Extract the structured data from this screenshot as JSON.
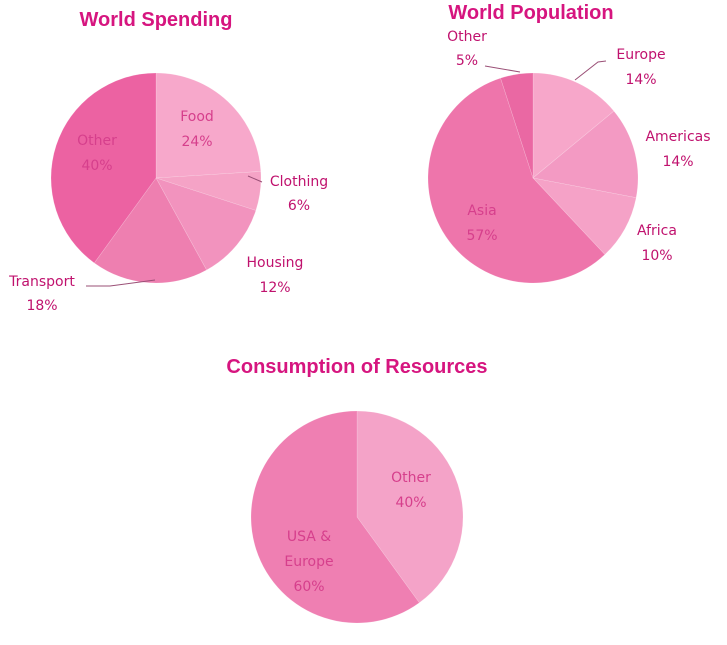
{
  "chart_data": [
    {
      "type": "pie",
      "title": "World Spending",
      "slices": [
        {
          "label": "Food",
          "value": 24,
          "value_label": "24%",
          "color": "#f7a8cb"
        },
        {
          "label": "Clothing",
          "value": 6,
          "value_label": "6%",
          "color": "#f5a3c6"
        },
        {
          "label": "Housing",
          "value": 12,
          "value_label": "12%",
          "color": "#f293be"
        },
        {
          "label": "Transport",
          "value": 18,
          "value_label": "18%",
          "color": "#ee7fb0"
        },
        {
          "label": "Other",
          "value": 40,
          "value_label": "40%",
          "color": "#ec62a2"
        }
      ]
    },
    {
      "type": "pie",
      "title": "World Population",
      "slices": [
        {
          "label": "Europe",
          "value": 14,
          "value_label": "14%",
          "color": "#f7a7ca"
        },
        {
          "label": "Americas",
          "value": 14,
          "value_label": "14%",
          "color": "#f39ac3"
        },
        {
          "label": "Africa",
          "value": 10,
          "value_label": "10%",
          "color": "#f5a2c7"
        },
        {
          "label": "Asia",
          "value": 57,
          "value_label": "57%",
          "color": "#ee75ab"
        },
        {
          "label": "Other",
          "value": 5,
          "value_label": "5%",
          "color": "#ea68a3"
        }
      ]
    },
    {
      "type": "pie",
      "title": "Consumption of Resources",
      "slices": [
        {
          "label": "Other",
          "value": 40,
          "value_label": "40%",
          "color": "#f4a3c8"
        },
        {
          "label": "USA & Europe",
          "value": 60,
          "value_label": "60%",
          "color": "#ef7fb2"
        }
      ]
    }
  ]
}
